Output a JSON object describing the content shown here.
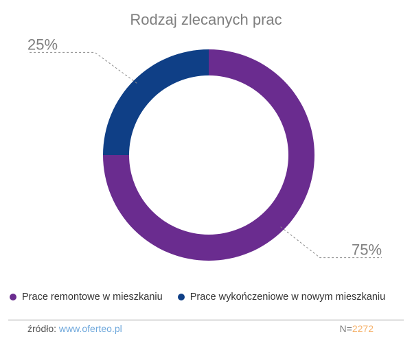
{
  "chart_data": {
    "type": "pie",
    "title": "Rodzaj zlecanych prac",
    "style": "donut",
    "slices": [
      {
        "name": "Prace remontowe w mieszkaniu",
        "value": 75,
        "label": "75%",
        "color": "#6a2c8f"
      },
      {
        "name": "Prace wykończeniowe w nowym mieszkaniu",
        "value": 25,
        "label": "25%",
        "color": "#0f3f86"
      }
    ],
    "legend_position": "bottom"
  },
  "footer": {
    "source_label": "źródło:",
    "source_url": "www.oferteo.pl",
    "sample_prefix": "N=",
    "sample_value": "2272"
  }
}
